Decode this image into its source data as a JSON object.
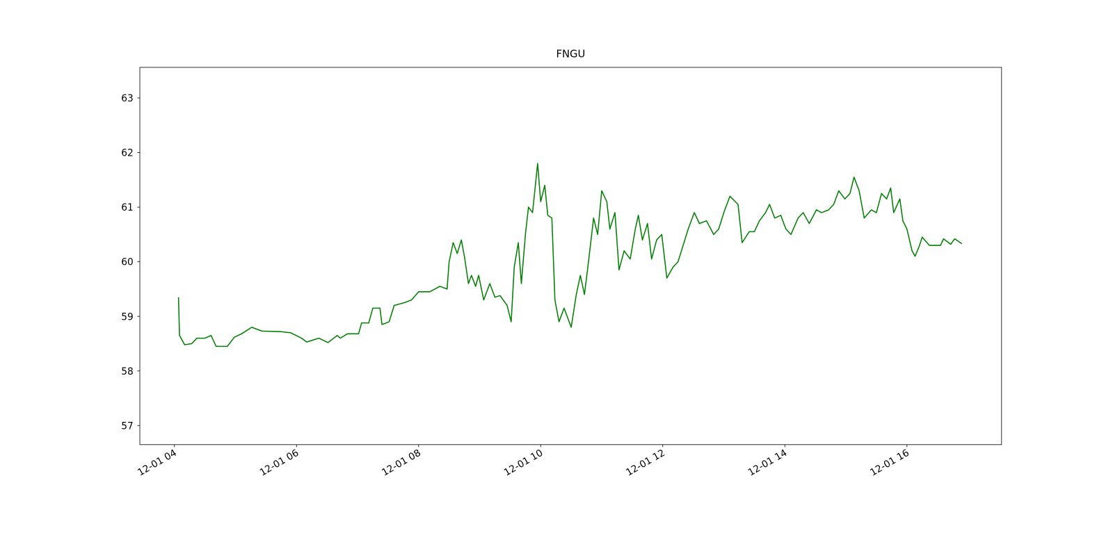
{
  "chart_data": {
    "type": "line",
    "title": "FNGU",
    "color": "#008000",
    "x": [
      "12-01 04:04",
      "12-01 04:05",
      "12-01 04:10",
      "12-01 04:17",
      "12-01 04:22",
      "12-01 04:30",
      "12-01 04:36",
      "12-01 04:41",
      "12-01 04:52",
      "12-01 04:59",
      "12-01 05:06",
      "12-01 05:16",
      "12-01 05:26",
      "12-01 05:44",
      "12-01 05:54",
      "12-01 06:05",
      "12-01 06:10",
      "12-01 06:22",
      "12-01 06:31",
      "12-01 06:40",
      "12-01 06:43",
      "12-01 06:50",
      "12-01 07:01",
      "12-01 07:04",
      "12-01 07:11",
      "12-01 07:15",
      "12-01 07:22",
      "12-01 07:24",
      "12-01 07:31",
      "12-01 07:36",
      "12-01 07:46",
      "12-01 07:53",
      "12-01 08:00",
      "12-01 08:11",
      "12-01 08:21",
      "12-01 08:28",
      "12-01 08:30",
      "12-01 08:34",
      "12-01 08:38",
      "12-01 08:42",
      "12-01 08:45",
      "12-01 08:49",
      "12-01 08:52",
      "12-01 08:56",
      "12-01 08:59",
      "12-01 09:04",
      "12-01 09:10",
      "12-01 09:15",
      "12-01 09:20",
      "12-01 09:27",
      "12-01 09:31",
      "12-01 09:34",
      "12-01 09:38",
      "12-01 09:41",
      "12-01 09:45",
      "12-01 09:48",
      "12-01 09:52",
      "12-01 09:57",
      "12-01 10:00",
      "12-01 10:04",
      "12-01 10:07",
      "12-01 10:11",
      "12-01 10:14",
      "12-01 10:18",
      "12-01 10:23",
      "12-01 10:27",
      "12-01 10:30",
      "12-01 10:35",
      "12-01 10:39",
      "12-01 10:43",
      "12-01 10:47",
      "12-01 10:52",
      "12-01 10:56",
      "12-01 11:00",
      "12-01 11:05",
      "12-01 11:08",
      "12-01 11:13",
      "12-01 11:17",
      "12-01 11:22",
      "12-01 11:28",
      "12-01 11:33",
      "12-01 11:36",
      "12-01 11:40",
      "12-01 11:45",
      "12-01 11:49",
      "12-01 11:54",
      "12-01 11:59",
      "12-01 12:04",
      "12-01 12:10",
      "12-01 12:15",
      "12-01 12:20",
      "12-01 12:25",
      "12-01 12:31",
      "12-01 12:36",
      "12-01 12:43",
      "12-01 12:50",
      "12-01 12:55",
      "12-01 13:00",
      "12-01 13:06",
      "12-01 13:14",
      "12-01 13:18",
      "12-01 13:25",
      "12-01 13:30",
      "12-01 13:35",
      "12-01 13:41",
      "12-01 13:45",
      "12-01 13:50",
      "12-01 13:56",
      "12-01 14:01",
      "12-01 14:06",
      "12-01 14:13",
      "12-01 14:18",
      "12-01 14:24",
      "12-01 14:31",
      "12-01 14:36",
      "12-01 14:43",
      "12-01 14:48",
      "12-01 14:53",
      "12-01 14:59",
      "12-01 15:04",
      "12-01 15:08",
      "12-01 15:13",
      "12-01 15:18",
      "12-01 15:25",
      "12-01 15:30",
      "12-01 15:35",
      "12-01 15:40",
      "12-01 15:44",
      "12-01 15:47",
      "12-01 15:53",
      "12-01 15:56",
      "12-01 16:00",
      "12-01 16:05",
      "12-01 16:08",
      "12-01 16:12",
      "12-01 16:15",
      "12-01 16:22",
      "12-01 16:33",
      "12-01 16:36",
      "12-01 16:43",
      "12-01 16:47",
      "12-01 16:54"
    ],
    "values": [
      59.35,
      58.65,
      58.48,
      58.5,
      58.6,
      58.6,
      58.65,
      58.45,
      58.45,
      58.62,
      58.68,
      58.8,
      58.73,
      58.72,
      58.7,
      58.6,
      58.53,
      58.6,
      58.52,
      58.65,
      58.6,
      58.68,
      58.68,
      58.88,
      58.88,
      59.15,
      59.15,
      58.85,
      58.9,
      59.2,
      59.25,
      59.3,
      59.45,
      59.45,
      59.55,
      59.5,
      60.0,
      60.35,
      60.15,
      60.4,
      60.1,
      59.6,
      59.75,
      59.55,
      59.75,
      59.3,
      59.6,
      59.35,
      59.38,
      59.2,
      58.9,
      59.9,
      60.35,
      59.6,
      60.5,
      61.0,
      60.9,
      61.8,
      61.1,
      61.4,
      60.85,
      60.8,
      59.3,
      58.9,
      59.15,
      58.95,
      58.8,
      59.4,
      59.75,
      59.4,
      60.0,
      60.8,
      60.5,
      61.3,
      61.1,
      60.6,
      60.9,
      59.85,
      60.2,
      60.05,
      60.6,
      60.85,
      60.4,
      60.7,
      60.05,
      60.4,
      60.5,
      59.7,
      59.9,
      60.0,
      60.3,
      60.6,
      60.9,
      60.7,
      60.75,
      60.5,
      60.6,
      60.9,
      61.2,
      61.05,
      60.35,
      60.55,
      60.55,
      60.75,
      60.9,
      61.05,
      60.8,
      60.85,
      60.6,
      60.5,
      60.8,
      60.9,
      60.7,
      60.95,
      60.9,
      60.95,
      61.05,
      61.3,
      61.15,
      61.25,
      61.55,
      61.3,
      60.8,
      60.95,
      60.9,
      61.25,
      61.15,
      61.35,
      60.9,
      61.15,
      60.75,
      60.6,
      60.2,
      60.1,
      60.28,
      60.45,
      60.3,
      60.3,
      60.42,
      60.32,
      60.42,
      60.33
    ],
    "xlim": [
      "12-01 03:26",
      "12-01 17:33"
    ],
    "xticks": [
      {
        "value": "12-01 04:00",
        "label": "12-01 04"
      },
      {
        "value": "12-01 06:00",
        "label": "12-01 06"
      },
      {
        "value": "12-01 08:00",
        "label": "12-01 08"
      },
      {
        "value": "12-01 10:00",
        "label": "12-01 10"
      },
      {
        "value": "12-01 12:00",
        "label": "12-01 12"
      },
      {
        "value": "12-01 14:00",
        "label": "12-01 14"
      },
      {
        "value": "12-01 16:00",
        "label": "12-01 16"
      }
    ],
    "ylim": [
      56.65,
      63.56
    ],
    "yticks": [
      57,
      58,
      59,
      60,
      61,
      62,
      63
    ]
  }
}
